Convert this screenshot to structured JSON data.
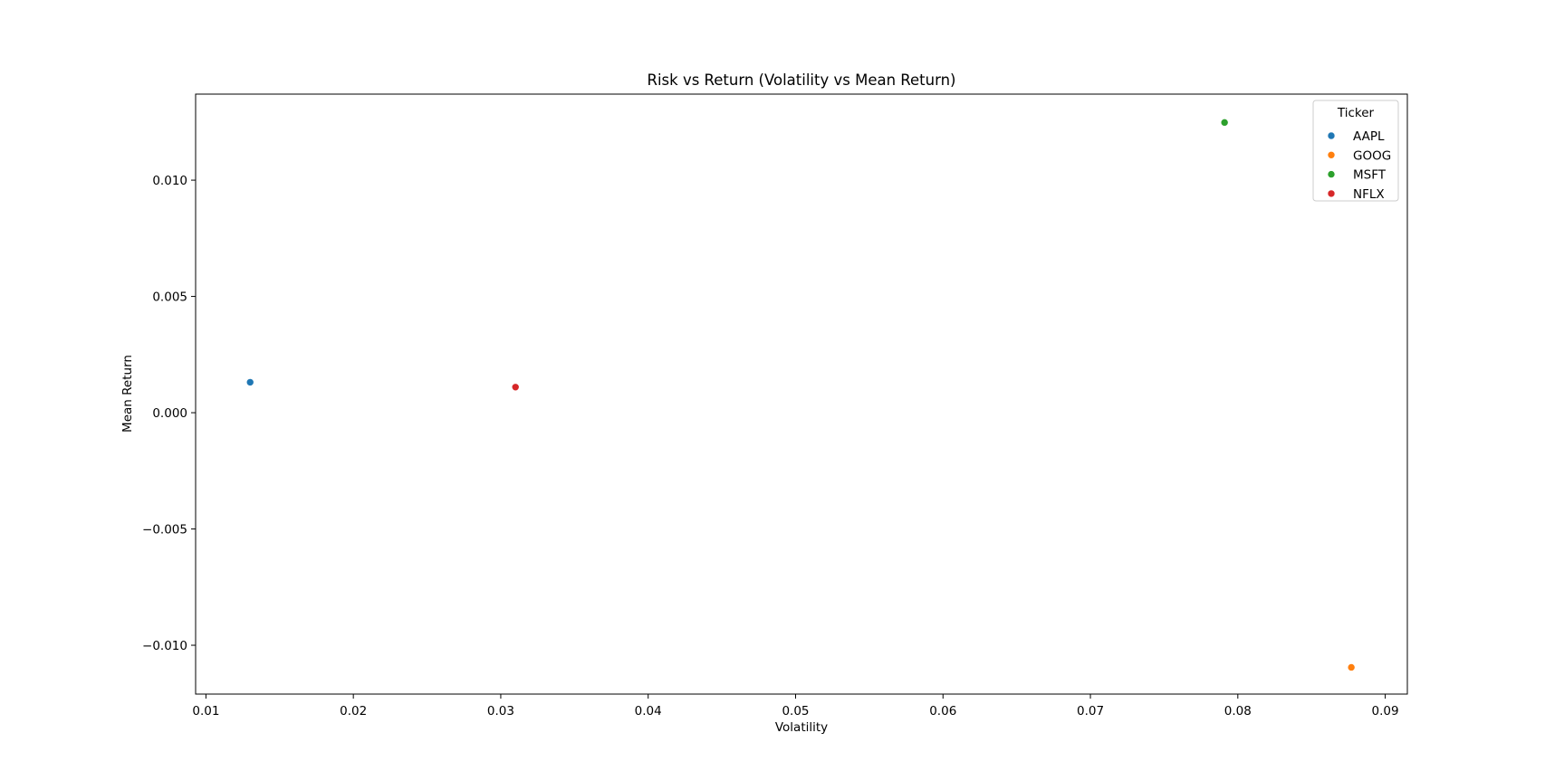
{
  "chart_data": {
    "type": "scatter",
    "title": "Risk vs Return (Volatility vs Mean Return)",
    "xlabel": "Volatility",
    "ylabel": "Mean Return",
    "xlim": [
      0.0093,
      0.0915
    ],
    "ylim": [
      -0.0121,
      0.0137
    ],
    "xticks": [
      0.01,
      0.02,
      0.03,
      0.04,
      0.05,
      0.06,
      0.07,
      0.08,
      0.09
    ],
    "xtick_labels": [
      "0.01",
      "0.02",
      "0.03",
      "0.04",
      "0.05",
      "0.06",
      "0.07",
      "0.08",
      "0.09"
    ],
    "yticks": [
      -0.01,
      -0.005,
      0.0,
      0.005,
      0.01
    ],
    "ytick_labels": [
      "−0.010",
      "−0.005",
      "0.000",
      "0.005",
      "0.010"
    ],
    "grid": false,
    "legend": {
      "title": "Ticker",
      "placement": "top-right"
    },
    "series": [
      {
        "name": "AAPL",
        "color": "#1f77b4",
        "x": [
          0.013
        ],
        "y": [
          0.00131
        ]
      },
      {
        "name": "GOOG",
        "color": "#ff7f0e",
        "x": [
          0.0877
        ],
        "y": [
          -0.01095
        ]
      },
      {
        "name": "MSFT",
        "color": "#2ca02c",
        "x": [
          0.0791
        ],
        "y": [
          0.01248
        ]
      },
      {
        "name": "NFLX",
        "color": "#d62728",
        "x": [
          0.031
        ],
        "y": [
          0.0011
        ]
      }
    ]
  }
}
